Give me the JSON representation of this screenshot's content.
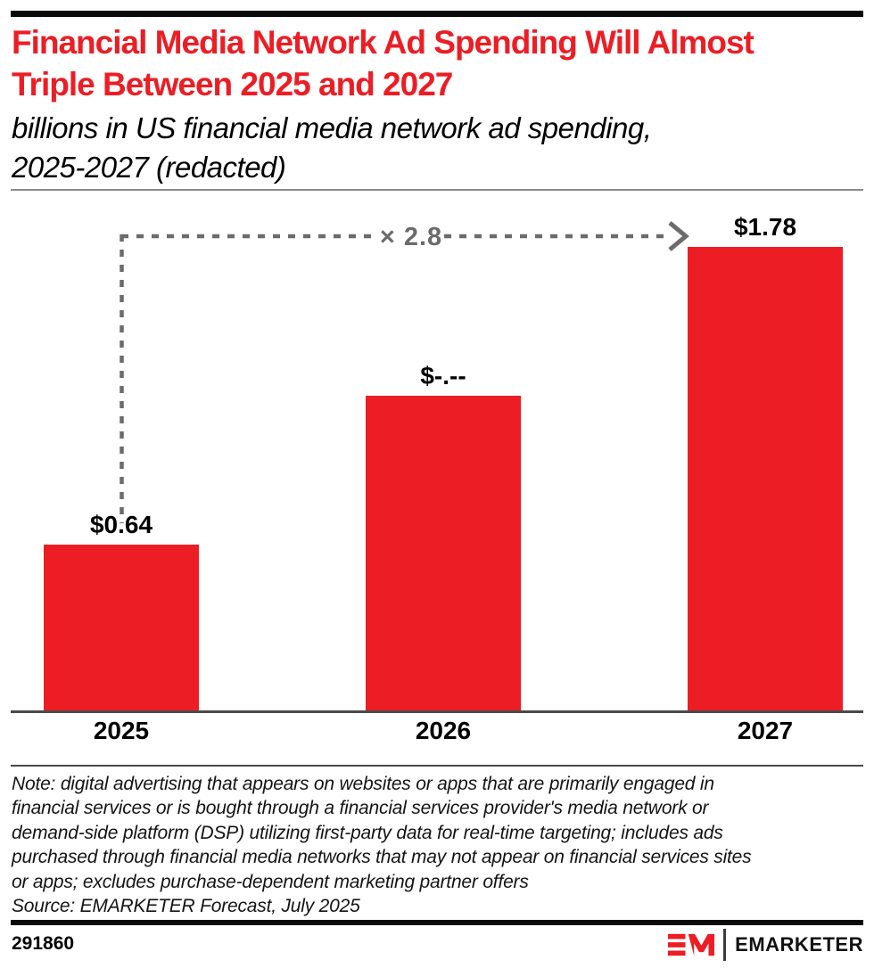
{
  "page": {
    "background": "#ffffff",
    "accent_red": "#EC1D24"
  },
  "header": {
    "title_lines": [
      "Financial Media Network Ad Spending Will Almost",
      "Triple Between 2025 and 2027"
    ],
    "subtitle_lines": [
      "billions in US financial media network ad spending,",
      "2025-2027 (redacted)"
    ]
  },
  "chart_data": {
    "type": "bar",
    "categories": [
      "2025",
      "2026",
      "2027"
    ],
    "values": [
      0.64,
      null,
      1.78
    ],
    "value_labels": [
      "$0.64",
      "$-.--",
      "$1.78"
    ],
    "estimated_values": [
      0.64,
      1.21,
      1.78
    ],
    "unit": "billions of US dollars",
    "ylim": [
      0,
      2
    ],
    "grid": false,
    "legend": "none",
    "bar_color": "#EC1D24",
    "annotation": {
      "label": "× 2.8",
      "from_category": "2025",
      "to_category": "2027",
      "style": "dashed-arrow",
      "color": "#6B6B6B"
    }
  },
  "footnote": {
    "note_lines": [
      "Note: digital advertising that appears on websites or apps that are primarily engaged in",
      "financial services or is bought through a financial services provider's media network or",
      "demand-side platform (DSP) utilizing first-party data for real-time targeting; includes ads",
      "purchased through financial media networks that may not appear on financial services sites",
      "or apps; excludes purchase-dependent marketing partner offers"
    ],
    "source": "Source: EMARKETER Forecast, July 2025"
  },
  "footer": {
    "chart_id": "291860",
    "brand_wordmark": "EMARKETER",
    "brand_monogram": "EM"
  }
}
